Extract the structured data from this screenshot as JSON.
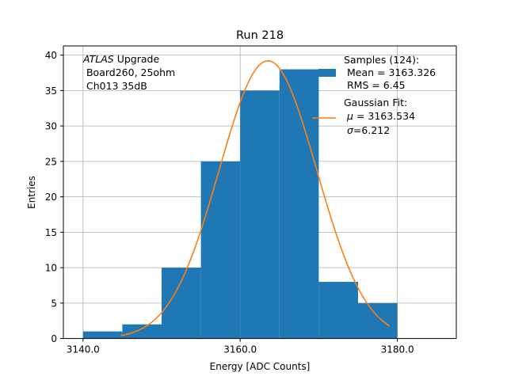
{
  "chart_data": {
    "type": "bar",
    "title": "Run 218",
    "xlabel": "Energy [ADC Counts]",
    "ylabel": "Entries",
    "xlim": [
      3137.5,
      3187.5
    ],
    "ylim": [
      0,
      41.3
    ],
    "x_ticks": [
      3140,
      3160,
      3180
    ],
    "x_tick_labels": [
      "3140.0",
      "3160.0",
      "3180.0"
    ],
    "y_ticks": [
      0,
      5,
      10,
      15,
      20,
      25,
      30,
      35,
      40
    ],
    "y_tick_labels": [
      "0",
      "5",
      "10",
      "15",
      "20",
      "25",
      "30",
      "35",
      "40"
    ],
    "grid": true,
    "bin_width": 5,
    "bins": [
      {
        "x0": 3140,
        "x1": 3145,
        "count": 1
      },
      {
        "x0": 3145,
        "x1": 3150,
        "count": 2
      },
      {
        "x0": 3150,
        "x1": 3155,
        "count": 10
      },
      {
        "x0": 3155,
        "x1": 3160,
        "count": 25
      },
      {
        "x0": 3160,
        "x1": 3165,
        "count": 35
      },
      {
        "x0": 3165,
        "x1": 3170,
        "count": 38
      },
      {
        "x0": 3170,
        "x1": 3175,
        "count": 8
      },
      {
        "x0": 3175,
        "x1": 3180,
        "count": 5
      }
    ],
    "fit": {
      "mu": 3163.534,
      "sigma": 6.212,
      "amplitude": 39.2,
      "x_range": [
        3144.8,
        3179.0
      ]
    },
    "annotation": {
      "line1_italic": "ATLAS",
      "line1_rest": " Upgrade",
      "line2": " Board260, 25ohm",
      "line3": " Ch013 35dB"
    },
    "legend": {
      "position": "top-right",
      "samples": {
        "line1": "Samples (124):",
        "line2": " Mean = 3163.326",
        "line3": " RMS = 6.45"
      },
      "fit": {
        "line1": "Gaussian Fit:",
        "mu_symbol": "μ",
        "mu_text": " = 3163.534",
        "sigma_symbol": "σ",
        "sigma_text": "=6.212"
      }
    },
    "colors": {
      "bars": "#1f77b4",
      "fit_line": "#ff7f0e",
      "grid": "#b0b0b0"
    }
  }
}
